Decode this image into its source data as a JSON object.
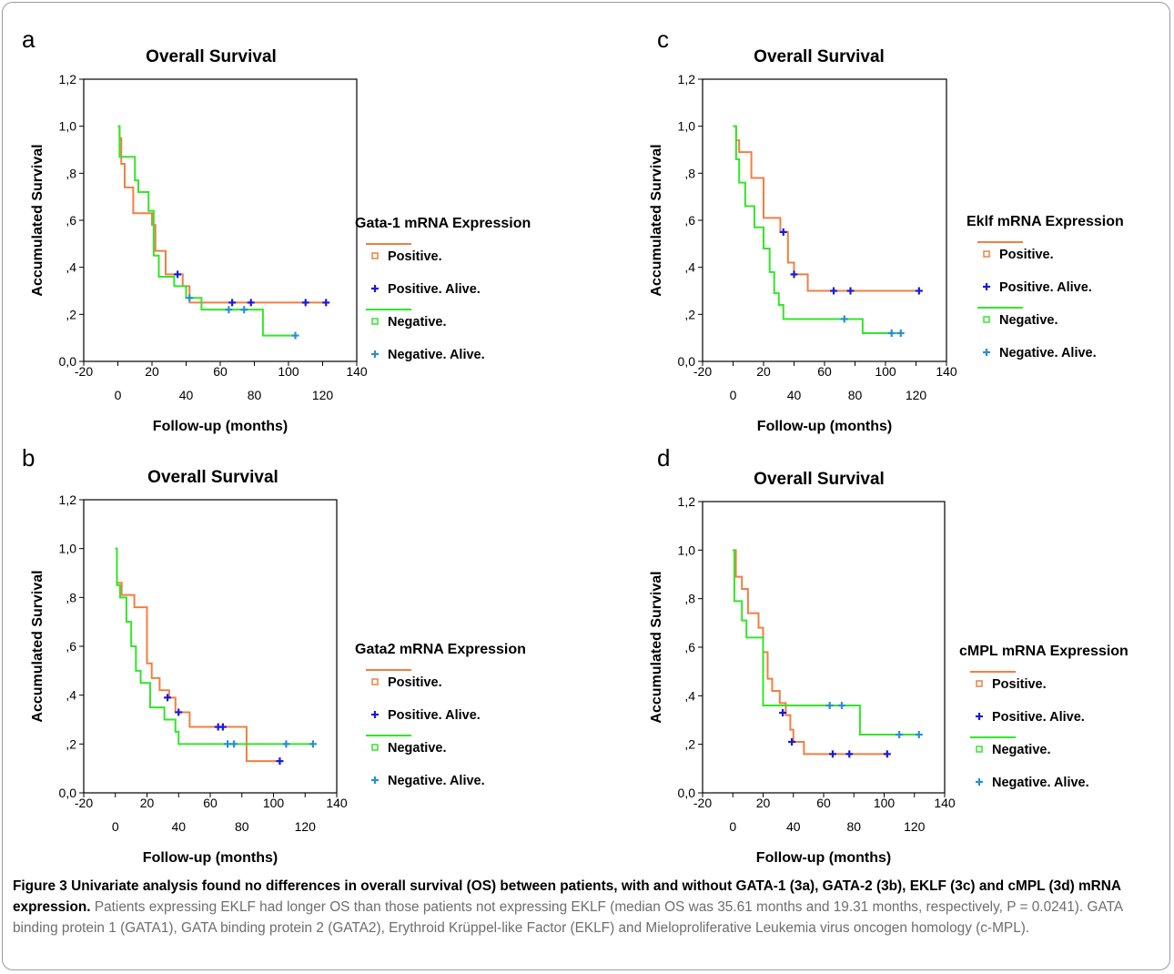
{
  "figure": {
    "caption_bold": "Figure 3 Univariate analysis found no differences in overall survival (OS) between patients, with and without GATA-1 (3a), GATA-2 (3b), EKLF (3c) and cMPL (3d) mRNA expression.",
    "caption_text": "Patients expressing EKLF had longer OS than those patients not expressing EKLF (median OS was 35.61 months and 19.31 months, respectively, P = 0.0241). GATA binding protein 1 (GATA1), GATA binding protein 2 (GATA2), Erythroid Krüppel-like Factor (EKLF) and Mieloproliferative Leukemia virus oncogen homology (c-MPL)."
  },
  "colors": {
    "positive": "#f07f43",
    "negative": "#33e52a",
    "positive_censor": "#1a1ad9",
    "negative_censor": "#2a8fd0"
  },
  "chart_data": [
    {
      "panel": "a",
      "type": "line",
      "title": "Overall Survival",
      "xlabel": "Follow-up (months)",
      "ylabel": "Accumulated Survival",
      "xlim": [
        -20,
        140
      ],
      "ylim": [
        0,
        1.2
      ],
      "x_tick_upper": [
        "-20",
        "20",
        "60",
        "100",
        "140"
      ],
      "x_tick_lower": [
        "0",
        "40",
        "80",
        "120"
      ],
      "y_ticks": [
        "0,0",
        ",2",
        ",4",
        ",6",
        ",8",
        "1,0",
        "1,2"
      ],
      "legend_title": "Gata-1 mRNA Expression",
      "legend": [
        "Positive.",
        "Positive. Alive.",
        "Negative.",
        "Negative. Alive."
      ],
      "series": [
        {
          "name": "Positive.",
          "step": [
            [
              0,
              1.0
            ],
            [
              1,
              0.95
            ],
            [
              2,
              0.84
            ],
            [
              4,
              0.74
            ],
            [
              9,
              0.63
            ],
            [
              15,
              0.63
            ],
            [
              20,
              0.58
            ],
            [
              22,
              0.47
            ],
            [
              28,
              0.37
            ],
            [
              38,
              0.32
            ],
            [
              42,
              0.25
            ],
            [
              122,
              0.25
            ]
          ],
          "censored": [
            [
              35,
              0.37
            ],
            [
              67,
              0.25
            ],
            [
              78,
              0.25
            ],
            [
              110,
              0.25
            ],
            [
              122,
              0.25
            ]
          ]
        },
        {
          "name": "Negative.",
          "step": [
            [
              0,
              1.0
            ],
            [
              1,
              0.87
            ],
            [
              10,
              0.77
            ],
            [
              12,
              0.72
            ],
            [
              18,
              0.64
            ],
            [
              21,
              0.45
            ],
            [
              24,
              0.36
            ],
            [
              33,
              0.32
            ],
            [
              40,
              0.27
            ],
            [
              49,
              0.22
            ],
            [
              85,
              0.11
            ],
            [
              104,
              0.11
            ]
          ],
          "censored": [
            [
              42,
              0.27
            ],
            [
              65,
              0.22
            ],
            [
              74,
              0.22
            ],
            [
              104,
              0.11
            ]
          ]
        }
      ]
    },
    {
      "panel": "b",
      "type": "line",
      "title": "Overall Survival",
      "xlabel": "Follow-up (months)",
      "ylabel": "Accumulated Survival",
      "xlim": [
        -20,
        140
      ],
      "ylim": [
        0,
        1.2
      ],
      "x_tick_upper": [
        "-20",
        "20",
        "60",
        "100",
        "140"
      ],
      "x_tick_lower": [
        "0",
        "40",
        "80",
        "120"
      ],
      "y_ticks": [
        "0,0",
        ",2",
        ",4",
        ",6",
        ",8",
        "1,0",
        "1,2"
      ],
      "legend_title": "Gata2 mRNA Expression",
      "legend": [
        "Positive.",
        "Positive. Alive.",
        "Negative.",
        "Negative. Alive."
      ],
      "series": [
        {
          "name": "Positive.",
          "step": [
            [
              0,
              1.0
            ],
            [
              1,
              0.86
            ],
            [
              4,
              0.81
            ],
            [
              12,
              0.76
            ],
            [
              20,
              0.53
            ],
            [
              23,
              0.47
            ],
            [
              28,
              0.42
            ],
            [
              34,
              0.39
            ],
            [
              38,
              0.33
            ],
            [
              47,
              0.27
            ],
            [
              83,
              0.13
            ],
            [
              104,
              0.13
            ]
          ],
          "censored": [
            [
              33,
              0.39
            ],
            [
              40,
              0.33
            ],
            [
              65,
              0.27
            ],
            [
              68,
              0.27
            ],
            [
              104,
              0.13
            ]
          ]
        },
        {
          "name": "Negative.",
          "step": [
            [
              0,
              1.0
            ],
            [
              1,
              0.85
            ],
            [
              3,
              0.8
            ],
            [
              7,
              0.7
            ],
            [
              10,
              0.6
            ],
            [
              13,
              0.5
            ],
            [
              16,
              0.45
            ],
            [
              22,
              0.35
            ],
            [
              31,
              0.3
            ],
            [
              38,
              0.25
            ],
            [
              40,
              0.2
            ],
            [
              125,
              0.2
            ]
          ],
          "censored": [
            [
              71,
              0.2
            ],
            [
              75,
              0.2
            ],
            [
              108,
              0.2
            ],
            [
              125,
              0.2
            ]
          ]
        }
      ]
    },
    {
      "panel": "c",
      "type": "line",
      "title": "Overall Survival",
      "xlabel": "Follow-up (months)",
      "ylabel": "Accumulated Survival",
      "xlim": [
        -20,
        140
      ],
      "ylim": [
        0,
        1.2
      ],
      "x_tick_upper": [
        "-20",
        "20",
        "60",
        "100",
        "140"
      ],
      "x_tick_lower": [
        "0",
        "40",
        "80",
        "120"
      ],
      "y_ticks": [
        "0,0",
        ",2",
        ",4",
        ",6",
        ",8",
        "1,0",
        "1,2"
      ],
      "legend_title": "Eklf mRNA Expression",
      "legend": [
        "Positive.",
        "Positive. Alive.",
        "Negative.",
        "Negative. Alive."
      ],
      "series": [
        {
          "name": "Positive.",
          "step": [
            [
              0,
              1.0
            ],
            [
              2,
              0.94
            ],
            [
              4,
              0.89
            ],
            [
              12,
              0.78
            ],
            [
              20,
              0.61
            ],
            [
              31,
              0.55
            ],
            [
              36,
              0.42
            ],
            [
              40,
              0.37
            ],
            [
              49,
              0.3
            ],
            [
              122,
              0.3
            ]
          ],
          "censored": [
            [
              33,
              0.55
            ],
            [
              40,
              0.37
            ],
            [
              66,
              0.3
            ],
            [
              77,
              0.3
            ],
            [
              122,
              0.3
            ]
          ]
        },
        {
          "name": "Negative.",
          "step": [
            [
              0,
              1.0
            ],
            [
              2,
              0.86
            ],
            [
              4,
              0.76
            ],
            [
              8,
              0.66
            ],
            [
              14,
              0.57
            ],
            [
              20,
              0.48
            ],
            [
              24,
              0.38
            ],
            [
              27,
              0.29
            ],
            [
              30,
              0.24
            ],
            [
              33,
              0.18
            ],
            [
              85,
              0.12
            ],
            [
              110,
              0.12
            ]
          ],
          "censored": [
            [
              73,
              0.18
            ],
            [
              104,
              0.12
            ],
            [
              110,
              0.12
            ]
          ]
        }
      ]
    },
    {
      "panel": "d",
      "type": "line",
      "title": "Overall Survival",
      "xlabel": "Follow-up (months)",
      "ylabel": "Accumulated Survival",
      "xlim": [
        -20,
        140
      ],
      "ylim": [
        0,
        1.2
      ],
      "x_tick_upper": [
        "-20",
        "20",
        "60",
        "100",
        "140"
      ],
      "x_tick_lower": [
        "0",
        "40",
        "80",
        "120"
      ],
      "y_ticks": [
        "0,0",
        ",2",
        ",4",
        ",6",
        ",8",
        "1,0",
        "1,2"
      ],
      "legend_title": "cMPL mRNA Expression",
      "legend": [
        "Positive.",
        "Positive. Alive.",
        "Negative.",
        "Negative. Alive."
      ],
      "series": [
        {
          "name": "Positive.",
          "step": [
            [
              0,
              1.0
            ],
            [
              2,
              0.89
            ],
            [
              6,
              0.84
            ],
            [
              10,
              0.74
            ],
            [
              17,
              0.68
            ],
            [
              20,
              0.58
            ],
            [
              23,
              0.47
            ],
            [
              26,
              0.42
            ],
            [
              31,
              0.37
            ],
            [
              35,
              0.32
            ],
            [
              38,
              0.26
            ],
            [
              40,
              0.21
            ],
            [
              47,
              0.16
            ],
            [
              102,
              0.16
            ]
          ],
          "censored": [
            [
              33,
              0.33
            ],
            [
              39,
              0.21
            ],
            [
              66,
              0.16
            ],
            [
              77,
              0.16
            ],
            [
              102,
              0.16
            ]
          ]
        },
        {
          "name": "Negative.",
          "step": [
            [
              0,
              1.0
            ],
            [
              1,
              0.79
            ],
            [
              6,
              0.71
            ],
            [
              9,
              0.64
            ],
            [
              20,
              0.36
            ],
            [
              84,
              0.24
            ],
            [
              123,
              0.24
            ]
          ],
          "censored": [
            [
              64,
              0.36
            ],
            [
              72,
              0.36
            ],
            [
              110,
              0.24
            ],
            [
              123,
              0.24
            ]
          ]
        }
      ]
    }
  ]
}
